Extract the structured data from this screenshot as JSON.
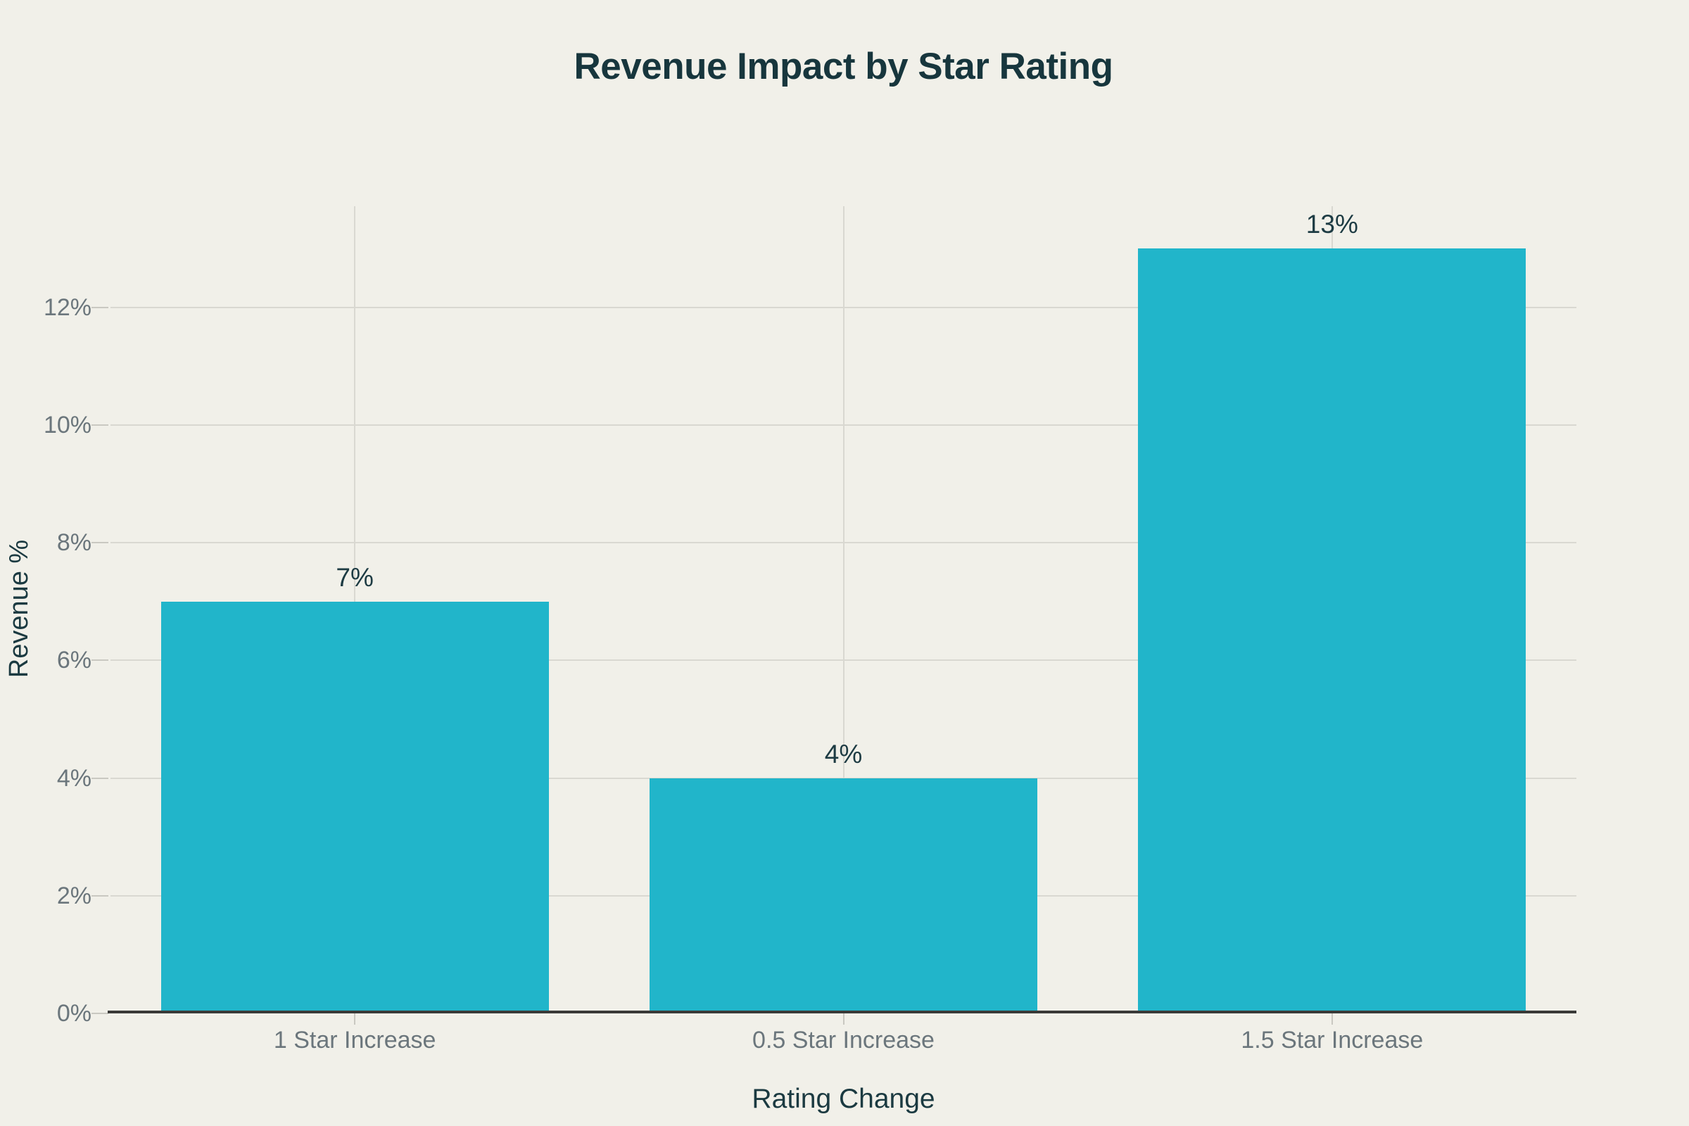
{
  "colors": {
    "background": "#F1F0E9",
    "bar": "#21B5CA",
    "title_text": "#17363D",
    "axis_title_text": "#1B3A41",
    "value_label_text": "#1D3B43",
    "tick_label_text": "#6B767C",
    "gridline": "#D9D8D1",
    "tick_mark": "#C9C8C1",
    "axis_line": "#3A3A38"
  },
  "chart_data": {
    "type": "bar",
    "title": "Revenue Impact by Star Rating",
    "xlabel": "Rating Change",
    "ylabel": "Revenue %",
    "categories": [
      "1 Star Increase",
      "0.5 Star Increase",
      "1.5 Star Increase"
    ],
    "values": [
      7,
      4,
      13
    ],
    "value_labels": [
      "7%",
      "4%",
      "13%"
    ],
    "ylim": [
      0,
      13.72
    ],
    "yticks": [
      0,
      2,
      4,
      6,
      8,
      10,
      12
    ],
    "ytick_labels": [
      "0%",
      "2%",
      "4%",
      "6%",
      "8%",
      "10%",
      "12%"
    ],
    "grid": true,
    "legend": false,
    "bar_band_fraction": 0.794
  }
}
